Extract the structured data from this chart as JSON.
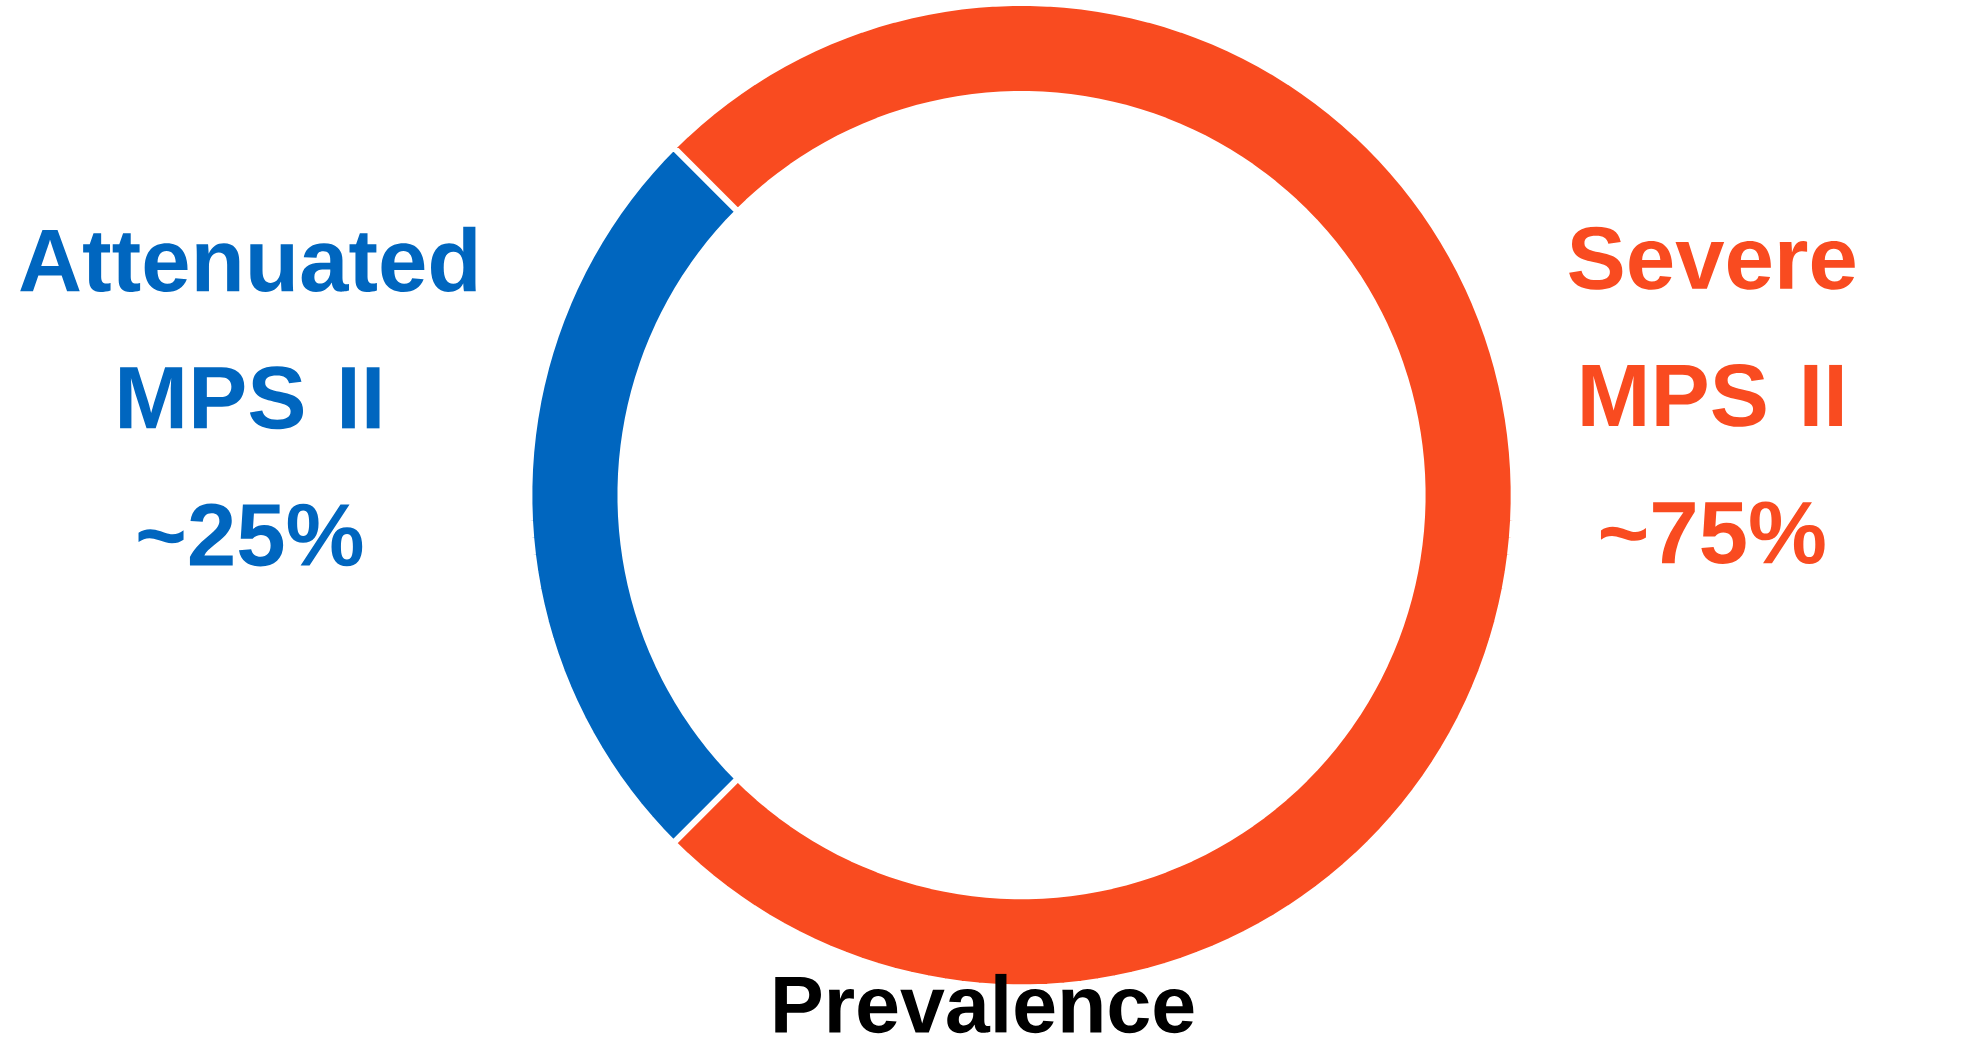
{
  "chart_data": {
    "type": "donut",
    "xlabel": "Prevalence",
    "categories": [
      "Attenuated MPS II",
      "Severe MPS II"
    ],
    "values": [
      25,
      75
    ],
    "colors": [
      "#0066bf",
      "#f94b20"
    ],
    "value_labels": [
      "~25%",
      "~75%"
    ]
  }
}
